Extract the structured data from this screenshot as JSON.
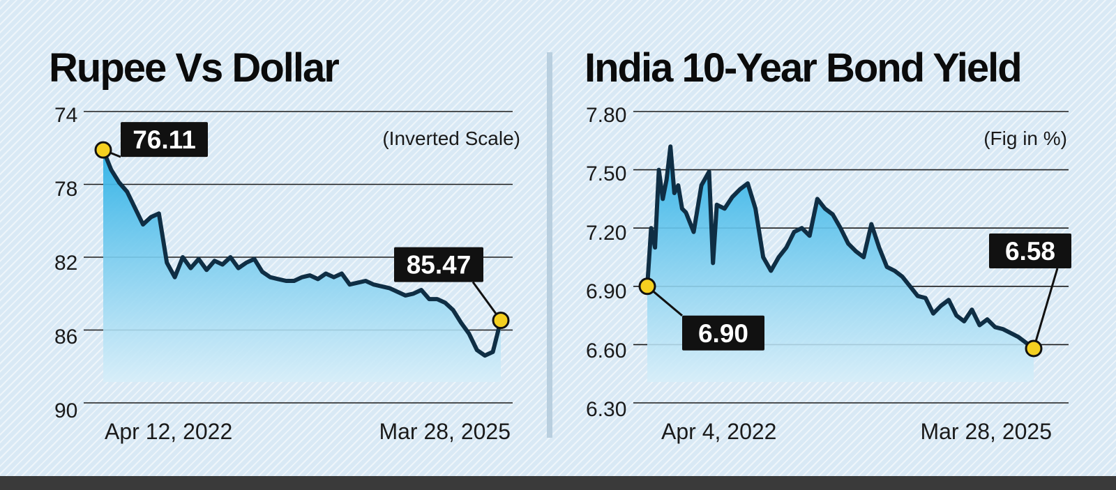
{
  "chart_data": [
    {
      "type": "area",
      "title": "Rupee Vs Dollar",
      "note": "(Inverted Scale)",
      "y_inverted": true,
      "ylim": [
        74,
        90
      ],
      "yticks": [
        "74",
        "78",
        "82",
        "86",
        "90"
      ],
      "x_labels": [
        "Apr 12, 2022",
        "Mar 28, 2025"
      ],
      "grid": true,
      "series": [
        {
          "x": [
            0,
            0.02,
            0.04,
            0.06,
            0.08,
            0.1,
            0.12,
            0.14,
            0.16,
            0.18,
            0.2,
            0.22,
            0.24,
            0.26,
            0.28,
            0.3,
            0.32,
            0.34,
            0.36,
            0.38,
            0.4,
            0.42,
            0.44,
            0.46,
            0.48,
            0.5,
            0.52,
            0.54,
            0.56,
            0.58,
            0.6,
            0.62,
            0.64,
            0.66,
            0.68,
            0.7,
            0.72,
            0.74,
            0.76,
            0.78,
            0.8,
            0.82,
            0.84,
            0.86,
            0.88,
            0.9,
            0.92,
            0.94,
            0.96,
            0.98,
            1.0
          ],
          "y": [
            76.11,
            77.2,
            77.9,
            78.4,
            79.3,
            80.2,
            79.8,
            79.6,
            82.3,
            83.1,
            82.0,
            82.6,
            82.1,
            82.7,
            82.2,
            82.4,
            82.0,
            82.6,
            82.3,
            82.1,
            82.8,
            83.1,
            83.2,
            83.3,
            83.3,
            83.1,
            83.0,
            83.2,
            82.9,
            83.1,
            82.9,
            83.5,
            83.4,
            83.3,
            83.5,
            83.6,
            83.7,
            83.9,
            84.1,
            84.0,
            83.8,
            84.3,
            84.3,
            84.5,
            84.9,
            85.6,
            86.2,
            87.1,
            87.4,
            87.2,
            85.47
          ]
        }
      ],
      "callouts": [
        {
          "label": "76.11",
          "point": "first"
        },
        {
          "label": "85.47",
          "point": "last"
        }
      ]
    },
    {
      "type": "area",
      "title": "India 10-Year Bond Yield",
      "note": "(Fig in %)",
      "y_inverted": false,
      "ylim": [
        6.3,
        7.8
      ],
      "yticks": [
        "7.80",
        "7.50",
        "7.20",
        "6.90",
        "6.60",
        "6.30"
      ],
      "x_labels": [
        "Apr 4, 2022",
        "Mar 28, 2025"
      ],
      "grid": true,
      "series": [
        {
          "x": [
            0,
            0.01,
            0.02,
            0.03,
            0.04,
            0.05,
            0.06,
            0.07,
            0.08,
            0.09,
            0.1,
            0.12,
            0.14,
            0.16,
            0.17,
            0.18,
            0.2,
            0.22,
            0.24,
            0.26,
            0.28,
            0.3,
            0.32,
            0.34,
            0.36,
            0.38,
            0.4,
            0.42,
            0.44,
            0.46,
            0.48,
            0.5,
            0.52,
            0.54,
            0.56,
            0.58,
            0.6,
            0.62,
            0.64,
            0.66,
            0.68,
            0.7,
            0.72,
            0.74,
            0.76,
            0.78,
            0.8,
            0.82,
            0.84,
            0.86,
            0.88,
            0.9,
            0.92,
            0.94,
            0.96,
            0.98,
            1.0
          ],
          "y": [
            6.9,
            7.2,
            7.1,
            7.5,
            7.35,
            7.45,
            7.62,
            7.38,
            7.42,
            7.3,
            7.28,
            7.18,
            7.42,
            7.49,
            7.02,
            7.32,
            7.3,
            7.36,
            7.4,
            7.43,
            7.3,
            7.05,
            6.98,
            7.05,
            7.1,
            7.18,
            7.2,
            7.16,
            7.35,
            7.3,
            7.27,
            7.2,
            7.12,
            7.08,
            7.05,
            7.22,
            7.1,
            7.0,
            6.98,
            6.95,
            6.9,
            6.85,
            6.84,
            6.76,
            6.8,
            6.83,
            6.75,
            6.72,
            6.78,
            6.7,
            6.73,
            6.69,
            6.68,
            6.66,
            6.64,
            6.61,
            6.58
          ]
        }
      ],
      "callouts": [
        {
          "label": "6.90",
          "point": "first"
        },
        {
          "label": "6.58",
          "point": "last"
        }
      ]
    }
  ]
}
